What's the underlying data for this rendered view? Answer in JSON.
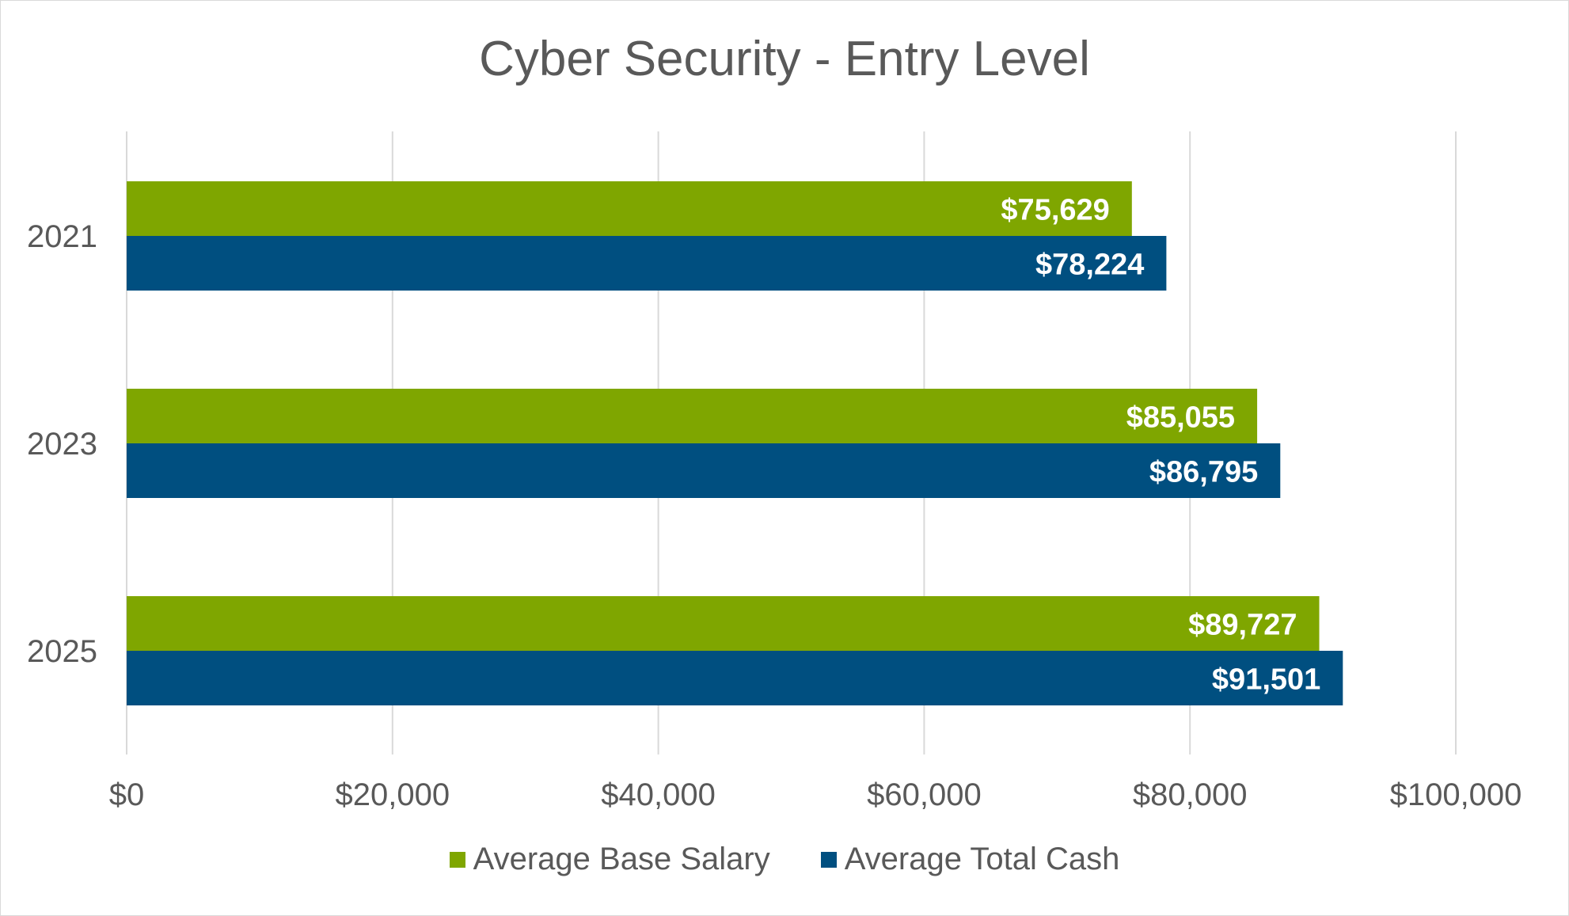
{
  "chart_data": {
    "type": "bar",
    "orientation": "horizontal",
    "title": "Cyber Security - Entry Level",
    "categories": [
      "2021",
      "2023",
      "2025"
    ],
    "series": [
      {
        "name": "Average Base Salary",
        "color": "#7fa600",
        "values": [
          75629,
          85055,
          89727
        ],
        "labels": [
          "$75,629",
          "$85,055",
          "$89,727"
        ]
      },
      {
        "name": "Average Total Cash",
        "color": "#004f80",
        "values": [
          78224,
          86795,
          91501
        ],
        "labels": [
          "$78,224",
          "$86,795",
          "$91,501"
        ]
      }
    ],
    "xlim": [
      0,
      100000
    ],
    "xticks": [
      0,
      20000,
      40000,
      60000,
      80000,
      100000
    ],
    "xtick_labels": [
      "$0",
      "$20,000",
      "$40,000",
      "$60,000",
      "$80,000",
      "$100,000"
    ],
    "grid": true,
    "legend_position": "bottom"
  }
}
